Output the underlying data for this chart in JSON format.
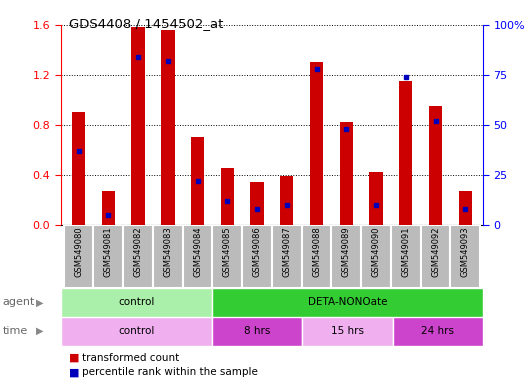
{
  "title": "GDS4408 / 1454502_at",
  "samples": [
    "GSM549080",
    "GSM549081",
    "GSM549082",
    "GSM549083",
    "GSM549084",
    "GSM549085",
    "GSM549086",
    "GSM549087",
    "GSM549088",
    "GSM549089",
    "GSM549090",
    "GSM549091",
    "GSM549092",
    "GSM549093"
  ],
  "transformed_count": [
    0.9,
    0.27,
    1.58,
    1.56,
    0.7,
    0.45,
    0.34,
    0.39,
    1.3,
    0.82,
    0.42,
    1.15,
    0.95,
    0.27
  ],
  "percentile_rank_pct": [
    37,
    5,
    84,
    82,
    22,
    12,
    8,
    10,
    78,
    48,
    10,
    74,
    52,
    8
  ],
  "ylim_left": [
    0,
    1.6
  ],
  "ylim_right": [
    0,
    100
  ],
  "yticks_left": [
    0,
    0.4,
    0.8,
    1.2,
    1.6
  ],
  "yticks_right": [
    0,
    25,
    50,
    75,
    100
  ],
  "bar_color": "#cc0000",
  "dot_color": "#0000bb",
  "bar_width": 0.45,
  "agent_labels": [
    {
      "text": "control",
      "start": 0,
      "end": 5,
      "color": "#aaf0aa"
    },
    {
      "text": "DETA-NONOate",
      "start": 5,
      "end": 14,
      "color": "#33cc33"
    }
  ],
  "time_labels": [
    {
      "text": "control",
      "start": 0,
      "end": 5,
      "color": "#f0b0f0"
    },
    {
      "text": "8 hrs",
      "start": 5,
      "end": 8,
      "color": "#cc44cc"
    },
    {
      "text": "15 hrs",
      "start": 8,
      "end": 11,
      "color": "#f0b0f0"
    },
    {
      "text": "24 hrs",
      "start": 11,
      "end": 14,
      "color": "#cc44cc"
    }
  ],
  "legend_entries": [
    {
      "label": "transformed count",
      "color": "#cc0000"
    },
    {
      "label": "percentile rank within the sample",
      "color": "#0000bb"
    }
  ],
  "background_color": "#ffffff",
  "tick_label_bg": "#bbbbbb"
}
